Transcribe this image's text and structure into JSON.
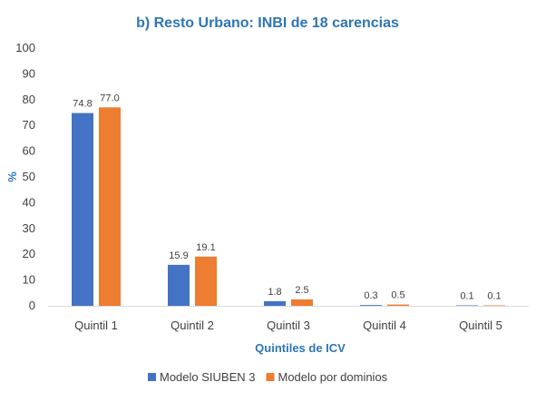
{
  "chart_data": {
    "type": "bar",
    "title": "b) Resto Urbano: INBI de 18 carencias",
    "xlabel": "Quintiles de ICV",
    "ylabel": "%",
    "ylim": [
      0,
      100
    ],
    "yticks": [
      0,
      10,
      20,
      30,
      40,
      50,
      60,
      70,
      80,
      90,
      100
    ],
    "categories": [
      "Quintil 1",
      "Quintil 2",
      "Quintil 3",
      "Quintil 4",
      "Quintil 5"
    ],
    "series": [
      {
        "name": "Modelo SIUBEN 3",
        "color": "#4472C4",
        "values": [
          74.8,
          15.9,
          1.8,
          0.3,
          0.1
        ],
        "labels": [
          "74.8",
          "15.9",
          "1.8",
          "0.3",
          "0.1"
        ]
      },
      {
        "name": "Modelo por dominios",
        "color": "#ED7D31",
        "values": [
          77.0,
          19.1,
          2.5,
          0.5,
          0.1
        ],
        "labels": [
          "77.0",
          "19.1",
          "2.5",
          "0.5",
          "0.1"
        ]
      }
    ],
    "grid": false,
    "legend_position": "bottom"
  }
}
